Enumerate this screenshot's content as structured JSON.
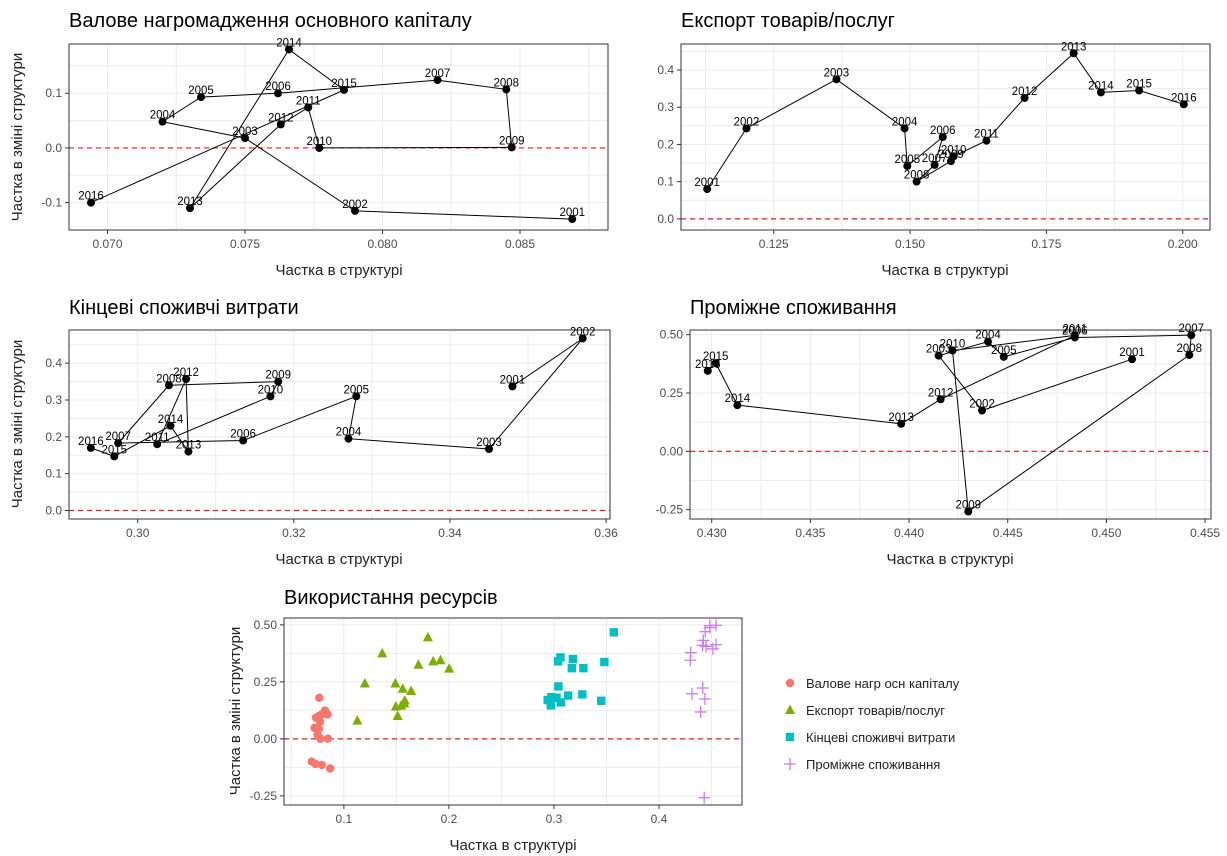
{
  "colors": {
    "refline": "#e41a1c",
    "path": "#000000",
    "grid": "#ebebeb",
    "series": [
      "#f8766d",
      "#7cae00",
      "#00bfc4",
      "#c77cff"
    ]
  },
  "chart_data": [
    {
      "type": "scatter",
      "title": "Валове нагромадження основного капіталу",
      "xlabel": "Частка в структурі",
      "ylabel": "Частка в зміні структури",
      "xlim": [
        0.0686,
        0.0882
      ],
      "ylim": [
        -0.15,
        0.19
      ],
      "xticks": [
        0.07,
        0.075,
        0.08,
        0.085
      ],
      "xtick_labels": [
        "0.070",
        "0.075",
        "0.080",
        "0.085"
      ],
      "yticks": [
        -0.1,
        0.0,
        0.1
      ],
      "ytick_labels": [
        "-0.1",
        "0.0",
        "0.1"
      ],
      "refline_y": 0,
      "points": [
        {
          "label": "2001",
          "x": 0.0869,
          "y": -0.13
        },
        {
          "label": "2002",
          "x": 0.079,
          "y": -0.115
        },
        {
          "label": "2003",
          "x": 0.075,
          "y": 0.018
        },
        {
          "label": "2004",
          "x": 0.072,
          "y": 0.048
        },
        {
          "label": "2005",
          "x": 0.0734,
          "y": 0.093
        },
        {
          "label": "2006",
          "x": 0.0762,
          "y": 0.1
        },
        {
          "label": "2007",
          "x": 0.082,
          "y": 0.124
        },
        {
          "label": "2008",
          "x": 0.0845,
          "y": 0.107
        },
        {
          "label": "2009",
          "x": 0.0847,
          "y": 0.001
        },
        {
          "label": "2010",
          "x": 0.0777,
          "y": 0.0
        },
        {
          "label": "2011",
          "x": 0.0773,
          "y": 0.074
        },
        {
          "label": "2012",
          "x": 0.0763,
          "y": 0.043
        },
        {
          "label": "2013",
          "x": 0.073,
          "y": -0.11
        },
        {
          "label": "2014",
          "x": 0.0766,
          "y": 0.18
        },
        {
          "label": "2015",
          "x": 0.0786,
          "y": 0.106
        },
        {
          "label": "2016",
          "x": 0.0694,
          "y": -0.1
        }
      ]
    },
    {
      "type": "scatter",
      "title": "Експорт товарів/послуг",
      "xlabel": "Частка в структурі",
      "ylabel": "",
      "xlim": [
        0.108,
        0.205
      ],
      "ylim": [
        -0.03,
        0.47
      ],
      "xticks": [
        0.125,
        0.15,
        0.175,
        0.2
      ],
      "xtick_labels": [
        "0.125",
        "0.150",
        "0.175",
        "0.200"
      ],
      "yticks": [
        0.0,
        0.1,
        0.2,
        0.3,
        0.4
      ],
      "ytick_labels": [
        "0.0",
        "0.1",
        "0.2",
        "0.3",
        "0.4"
      ],
      "refline_y": 0,
      "points": [
        {
          "label": "2001",
          "x": 0.1128,
          "y": 0.08
        },
        {
          "label": "2002",
          "x": 0.12,
          "y": 0.243
        },
        {
          "label": "2003",
          "x": 0.1365,
          "y": 0.375
        },
        {
          "label": "2004",
          "x": 0.149,
          "y": 0.243
        },
        {
          "label": "2005",
          "x": 0.1495,
          "y": 0.142
        },
        {
          "label": "2006",
          "x": 0.156,
          "y": 0.22
        },
        {
          "label": "2007",
          "x": 0.1545,
          "y": 0.145
        },
        {
          "label": "2008",
          "x": 0.1512,
          "y": 0.1
        },
        {
          "label": "2009",
          "x": 0.1575,
          "y": 0.155
        },
        {
          "label": "2010",
          "x": 0.158,
          "y": 0.168
        },
        {
          "label": "2011",
          "x": 0.164,
          "y": 0.21
        },
        {
          "label": "2012",
          "x": 0.171,
          "y": 0.325
        },
        {
          "label": "2013",
          "x": 0.18,
          "y": 0.445
        },
        {
          "label": "2014",
          "x": 0.185,
          "y": 0.34
        },
        {
          "label": "2015",
          "x": 0.192,
          "y": 0.345
        },
        {
          "label": "2016",
          "x": 0.2002,
          "y": 0.308
        }
      ]
    },
    {
      "type": "scatter",
      "title": "Кінцеві споживчі витрати",
      "xlabel": "Частка в структурі",
      "ylabel": "Частка в зміні структури",
      "xlim": [
        0.2912,
        0.3605
      ],
      "ylim": [
        -0.023,
        0.49
      ],
      "xticks": [
        0.3,
        0.32,
        0.34,
        0.36
      ],
      "xtick_labels": [
        "0.30",
        "0.32",
        "0.34",
        "0.36"
      ],
      "yticks": [
        0.0,
        0.1,
        0.2,
        0.3,
        0.4
      ],
      "ytick_labels": [
        "0.0",
        "0.1",
        "0.2",
        "0.3",
        "0.4"
      ],
      "refline_y": 0,
      "points": [
        {
          "label": "2001",
          "x": 0.348,
          "y": 0.337
        },
        {
          "label": "2002",
          "x": 0.357,
          "y": 0.467
        },
        {
          "label": "2003",
          "x": 0.345,
          "y": 0.167
        },
        {
          "label": "2004",
          "x": 0.327,
          "y": 0.195
        },
        {
          "label": "2005",
          "x": 0.328,
          "y": 0.31
        },
        {
          "label": "2006",
          "x": 0.3135,
          "y": 0.19
        },
        {
          "label": "2007",
          "x": 0.2975,
          "y": 0.183
        },
        {
          "label": "2008",
          "x": 0.304,
          "y": 0.34
        },
        {
          "label": "2009",
          "x": 0.318,
          "y": 0.35
        },
        {
          "label": "2010",
          "x": 0.317,
          "y": 0.31
        },
        {
          "label": "2011",
          "x": 0.3025,
          "y": 0.18
        },
        {
          "label": "2012",
          "x": 0.3062,
          "y": 0.357
        },
        {
          "label": "2013",
          "x": 0.3065,
          "y": 0.16
        },
        {
          "label": "2014",
          "x": 0.3042,
          "y": 0.23
        },
        {
          "label": "2015",
          "x": 0.297,
          "y": 0.147
        },
        {
          "label": "2016",
          "x": 0.294,
          "y": 0.17
        }
      ]
    },
    {
      "type": "scatter",
      "title": "Проміжне споживання",
      "xlabel": "Частка в структурі",
      "ylabel": "",
      "xlim": [
        0.4289,
        0.4553
      ],
      "ylim": [
        -0.29,
        0.52
      ],
      "xticks": [
        0.43,
        0.435,
        0.44,
        0.445,
        0.45,
        0.455
      ],
      "xtick_labels": [
        "0.430",
        "0.435",
        "0.440",
        "0.445",
        "0.450",
        "0.455"
      ],
      "yticks": [
        -0.25,
        0.0,
        0.25,
        0.5
      ],
      "ytick_labels": [
        "-0.25",
        "0.00",
        "0.25",
        "0.50"
      ],
      "refline_y": 0,
      "points": [
        {
          "label": "2001",
          "x": 0.4513,
          "y": 0.395
        },
        {
          "label": "2002",
          "x": 0.4437,
          "y": 0.175
        },
        {
          "label": "2003",
          "x": 0.4415,
          "y": 0.41
        },
        {
          "label": "2004",
          "x": 0.444,
          "y": 0.47
        },
        {
          "label": "2005",
          "x": 0.4448,
          "y": 0.405
        },
        {
          "label": "2006",
          "x": 0.4484,
          "y": 0.488
        },
        {
          "label": "2007",
          "x": 0.4543,
          "y": 0.498
        },
        {
          "label": "2008",
          "x": 0.4542,
          "y": 0.413
        },
        {
          "label": "2009",
          "x": 0.443,
          "y": -0.258
        },
        {
          "label": "2010",
          "x": 0.4422,
          "y": 0.432
        },
        {
          "label": "2011",
          "x": 0.4484,
          "y": 0.497
        },
        {
          "label": "2012",
          "x": 0.4416,
          "y": 0.223
        },
        {
          "label": "2013",
          "x": 0.4396,
          "y": 0.118
        },
        {
          "label": "2014",
          "x": 0.4313,
          "y": 0.198
        },
        {
          "label": "2015",
          "x": 0.4302,
          "y": 0.378
        },
        {
          "label": "2016",
          "x": 0.4298,
          "y": 0.345
        }
      ]
    },
    {
      "type": "scatter",
      "title": "Використання ресурсів",
      "xlabel": "Частка в структурі",
      "ylabel": "Частка в зміні структури",
      "xlim": [
        0.043,
        0.479
      ],
      "ylim": [
        -0.29,
        0.53
      ],
      "xticks": [
        0.1,
        0.2,
        0.3,
        0.4
      ],
      "xtick_labels": [
        "0.1",
        "0.2",
        "0.3",
        "0.4"
      ],
      "yticks": [
        -0.25,
        0.0,
        0.25,
        0.5
      ],
      "ytick_labels": [
        "-0.25",
        "0.00",
        "0.25",
        "0.50"
      ],
      "refline_y": 0,
      "legend_position": "right",
      "legend": [
        {
          "name": "Валове нагр осн капіталу",
          "shape": "circle"
        },
        {
          "name": "Експорт товарів/послуг",
          "shape": "triangle"
        },
        {
          "name": "Кінцеві споживчі витрати",
          "shape": "square"
        },
        {
          "name": "Проміжне споживання",
          "shape": "plus"
        }
      ],
      "series_source": "combined from the four panels above"
    }
  ]
}
